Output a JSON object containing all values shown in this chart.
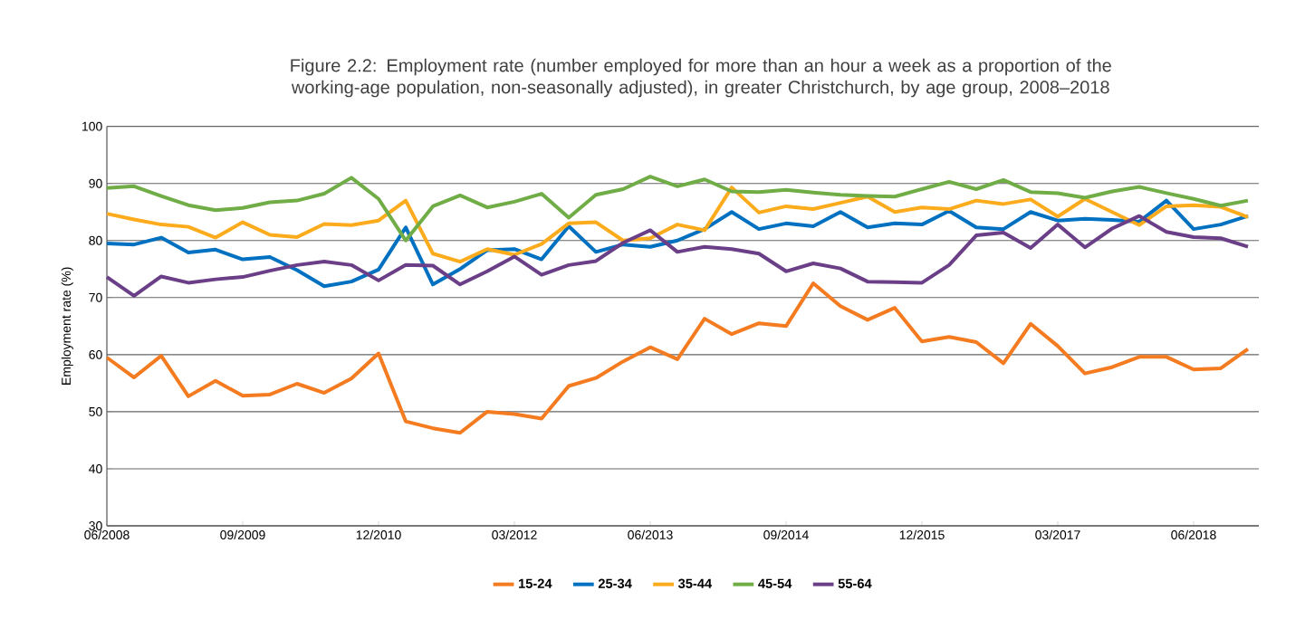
{
  "chart_data": {
    "type": "line",
    "title": "Figure 2.2: Employment rate (number employed for more than an hour a week as a proportion of the working-age population, non-seasonally adjusted), in greater Christchurch, by age group, 2008–2018",
    "ylabel": "Employment rate (%)",
    "categories": [
      "06/2008",
      null,
      null,
      null,
      null,
      "09/2009",
      null,
      null,
      null,
      null,
      "12/2010",
      null,
      null,
      null,
      null,
      "03/2012",
      null,
      null,
      null,
      null,
      "06/2013",
      null,
      null,
      null,
      null,
      "09/2014",
      null,
      null,
      null,
      null,
      "12/2015",
      null,
      null,
      null,
      null,
      "03/2017",
      null,
      null,
      null,
      null,
      "06/2018",
      null,
      null
    ],
    "ylim": [
      30,
      100
    ],
    "yticks": [
      30,
      40,
      50,
      60,
      70,
      80,
      90,
      100
    ],
    "grid": "y",
    "legend": "bottom",
    "marker": "none",
    "line_style": "solid",
    "series": [
      {
        "name": "15-24",
        "color": "#f47b20",
        "values": [
          59.5,
          56,
          59.8,
          52.7,
          55.4,
          52.8,
          53,
          54.9,
          53.3,
          55.8,
          60.2,
          48.3,
          47.1,
          46.3,
          50,
          49.6,
          48.8,
          54.5,
          55.9,
          58.8,
          61.3,
          59.2,
          66.3,
          63.6,
          65.5,
          65,
          72.5,
          68.5,
          66.1,
          68.2,
          62.3,
          63.1,
          62.2,
          58.5,
          65.4,
          61.5,
          56.7,
          57.8,
          59.6,
          59.6,
          57.4,
          57.6,
          61.0
        ]
      },
      {
        "name": "25-34",
        "color": "#0070c0",
        "values": [
          79.5,
          79.3,
          80.5,
          77.9,
          78.4,
          76.7,
          77.1,
          74.8,
          72,
          72.8,
          74.9,
          82.3,
          72.3,
          75,
          78.3,
          78.5,
          76.7,
          82.5,
          78,
          79.3,
          78.9,
          80,
          82,
          85,
          82,
          83,
          82.5,
          85,
          82.3,
          83,
          82.8,
          85.2,
          82.3,
          82,
          85,
          83.5,
          83.8,
          83.6,
          83.3,
          87,
          82,
          82.8,
          84.3
        ]
      },
      {
        "name": "35-44",
        "color": "#fcab1c",
        "values": [
          84.7,
          83.7,
          82.8,
          82.4,
          80.5,
          83.2,
          81,
          80.6,
          82.9,
          82.7,
          83.5,
          87,
          77.7,
          76.3,
          78.5,
          77.5,
          79.4,
          83,
          83.2,
          80,
          80.4,
          82.8,
          81.8,
          89.3,
          84.9,
          86,
          85.5,
          86.6,
          87.7,
          85,
          85.8,
          85.5,
          87,
          86.4,
          87.2,
          84.2,
          87.3,
          85,
          82.7,
          86,
          86.2,
          85.9,
          84.1
        ]
      },
      {
        "name": "45-54",
        "color": "#70ad47",
        "values": [
          89.2,
          89.5,
          87.8,
          86.2,
          85.3,
          85.7,
          86.7,
          87,
          88.2,
          91,
          87.3,
          80,
          86,
          87.9,
          85.8,
          86.8,
          88.2,
          84,
          88,
          89,
          91.2,
          89.5,
          90.7,
          88.6,
          88.5,
          88.9,
          88.4,
          88,
          87.8,
          87.7,
          89,
          90.3,
          89,
          90.6,
          88.5,
          88.3,
          87.5,
          88.6,
          89.4,
          88.3,
          87.3,
          86.1,
          87
        ]
      },
      {
        "name": "55-64",
        "color": "#6b3f87",
        "values": [
          73.6,
          70.3,
          73.7,
          72.6,
          73.2,
          73.6,
          74.7,
          75.7,
          76.3,
          75.7,
          73,
          75.7,
          75.6,
          72.3,
          74.6,
          77.2,
          74,
          75.7,
          76.4,
          79.6,
          81.8,
          78,
          78.9,
          78.5,
          77.7,
          74.6,
          76,
          75.1,
          72.8,
          72.7,
          72.6,
          75.7,
          80.9,
          81.4,
          78.7,
          82.8,
          78.8,
          82.1,
          84.3,
          81.5,
          80.6,
          80.4,
          78.9
        ]
      }
    ]
  }
}
